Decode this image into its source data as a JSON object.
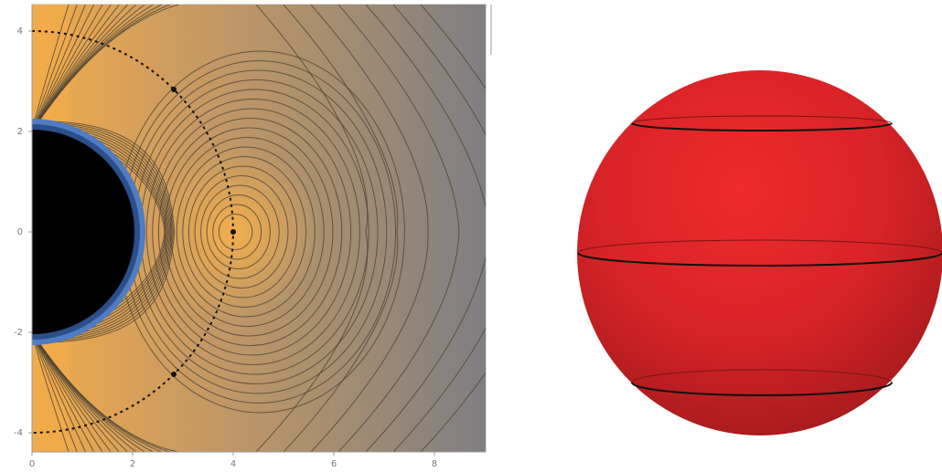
{
  "left_panel": {
    "x_tick_labels": [
      "0",
      "2",
      "4",
      "6",
      "8"
    ],
    "y_tick_labels": [
      "4",
      "2",
      "0",
      "-2",
      "-4"
    ],
    "colors": {
      "fill_near_axis": "#f0a94b",
      "fill_far": "#7f7e83",
      "horizon_fill": "#000000",
      "inner_band": "#4f7cc3",
      "contour_line": "#4d4536",
      "dashed_circle": "#111111"
    }
  },
  "right_panel": {
    "colors": {
      "sphere_highlight": "#ee2b2b",
      "sphere_shadow": "#a31a1c",
      "ring_front": "#111111",
      "ring_back": "#7a1414"
    },
    "ring_count": 3
  }
}
